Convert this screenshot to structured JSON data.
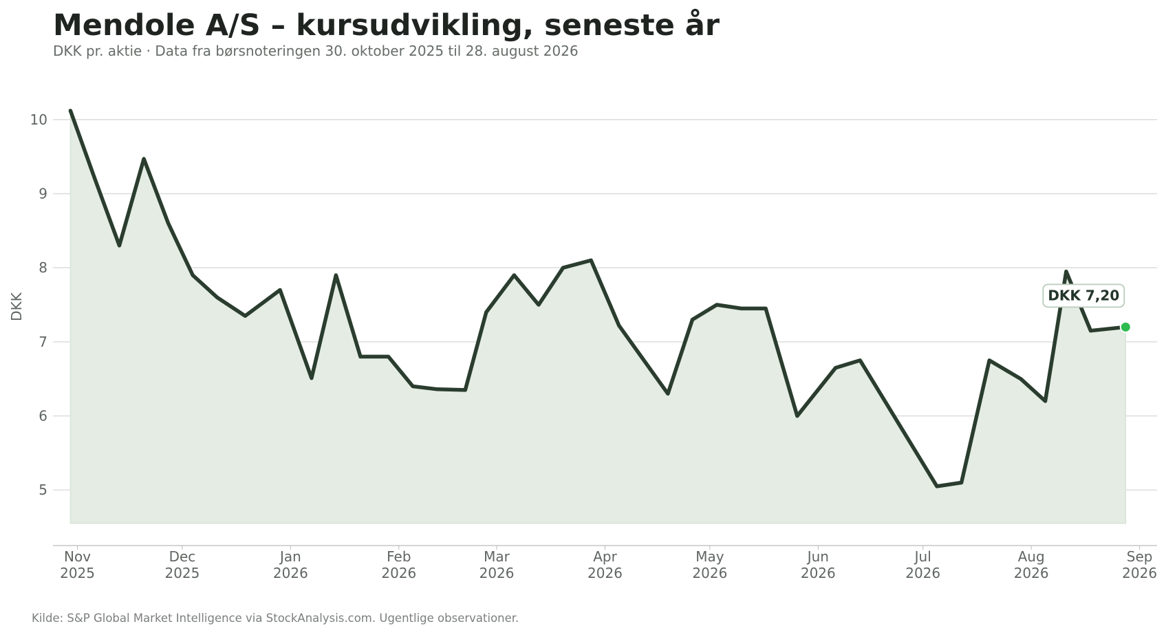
{
  "title": "Mendole A/S – kursudvikling, seneste år",
  "subtitle": "DKK pr. aktie · Data fra børsnoteringen 30. oktober 2025 til 28. august 2026",
  "source": "Kilde: S&P Global Market Intelligence via StockAnalysis.com. Ugentlige observationer.",
  "colors": {
    "line": "#2a3d2e",
    "area": "#e4ece3",
    "grid": "#dcdfdc",
    "marker": "#2dba4e",
    "text": "#5f6561"
  },
  "chart_data": {
    "type": "area",
    "title": "Mendole A/S – kursudvikling, seneste år",
    "subtitle": "DKK pr. aktie · Data fra børsnoteringen 30. oktober 2025 til 28. august 2026",
    "xlabel": "",
    "ylabel": "DKK",
    "ylim": [
      4.25,
      10.5
    ],
    "xlim": [
      "2025-10-25",
      "2026-09-06"
    ],
    "yticks": [
      5,
      6,
      7,
      8,
      9,
      10
    ],
    "xticks": [
      {
        "date": "2025-11-01",
        "month": "Nov",
        "year": "2025"
      },
      {
        "date": "2025-12-01",
        "month": "Dec",
        "year": "2025"
      },
      {
        "date": "2026-01-01",
        "month": "Jan",
        "year": "2026"
      },
      {
        "date": "2026-02-01",
        "month": "Feb",
        "year": "2026"
      },
      {
        "date": "2026-03-01",
        "month": "Mar",
        "year": "2026"
      },
      {
        "date": "2026-04-01",
        "month": "Apr",
        "year": "2026"
      },
      {
        "date": "2026-05-01",
        "month": "May",
        "year": "2026"
      },
      {
        "date": "2026-06-01",
        "month": "Jun",
        "year": "2026"
      },
      {
        "date": "2026-07-01",
        "month": "Jul",
        "year": "2026"
      },
      {
        "date": "2026-08-01",
        "month": "Aug",
        "year": "2026"
      },
      {
        "date": "2026-09-01",
        "month": "Sep",
        "year": "2026"
      }
    ],
    "grid": true,
    "annotation": {
      "date": "2026-08-28",
      "value": 7.2,
      "label": "DKK 7,20"
    },
    "series": [
      {
        "x": [
          "2025-10-30",
          "2025-11-06",
          "2025-11-13",
          "2025-11-20",
          "2025-11-27",
          "2025-12-04",
          "2025-12-11",
          "2025-12-19",
          "2025-12-29",
          "2026-01-07",
          "2026-01-14",
          "2026-01-21",
          "2026-01-29",
          "2026-02-05",
          "2026-02-12",
          "2026-02-20",
          "2026-02-26",
          "2026-03-06",
          "2026-03-13",
          "2026-03-20",
          "2026-03-28",
          "2026-04-05",
          "2026-04-19",
          "2026-04-26",
          "2026-05-03",
          "2026-05-10",
          "2026-05-17",
          "2026-05-26",
          "2026-06-06",
          "2026-06-13",
          "2026-06-24",
          "2026-07-05",
          "2026-07-12",
          "2026-07-20",
          "2026-07-29",
          "2026-08-05",
          "2026-08-11",
          "2026-08-18",
          "2026-08-28"
        ],
        "values": [
          10.12,
          9.2,
          8.3,
          9.47,
          8.6,
          7.9,
          7.6,
          7.35,
          7.7,
          6.51,
          7.9,
          6.8,
          6.8,
          6.4,
          6.36,
          6.35,
          7.4,
          7.9,
          7.5,
          8.0,
          8.1,
          7.22,
          6.3,
          7.3,
          7.5,
          7.45,
          7.45,
          6.0,
          6.65,
          6.75,
          5.9,
          5.05,
          5.1,
          6.75,
          6.5,
          6.2,
          7.95,
          7.15,
          7.2
        ]
      }
    ]
  }
}
